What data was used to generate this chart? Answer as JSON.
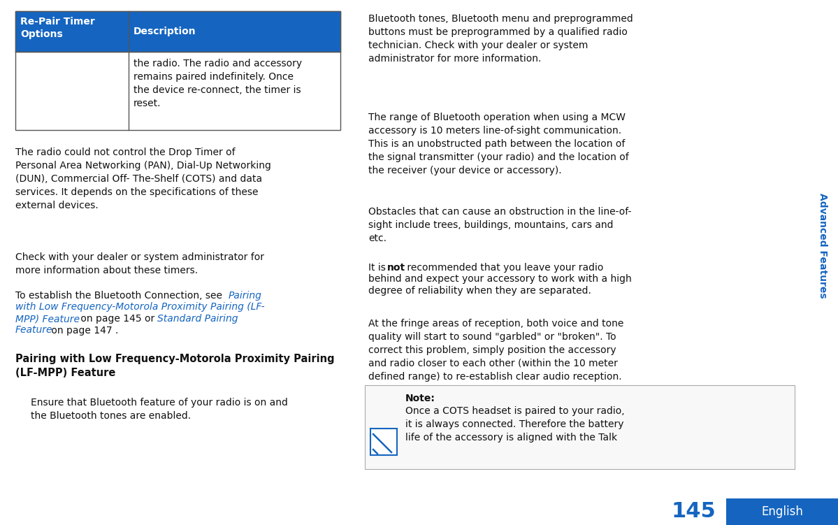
{
  "bg_color": "#ffffff",
  "blue_color": "#1565C0",
  "text_color": "#111111",
  "link_color": "#1565C0",
  "sidebar_text": "Advanced Features",
  "footer_text": "English",
  "page_number": "145",
  "table_header_col1": "Re-Pair Timer\nOptions",
  "table_header_col2": "Description",
  "table_body_col2": "the radio. The radio and accessory\nremains paired indefinitely. Once\nthe device re-connect, the timer is\nreset.",
  "para1_left": "The radio could not control the Drop Timer of\nPersonal Area Networking (PAN), Dial-Up Networking\n(DUN), Commercial Off- The-Shelf (COTS) and data\nservices. It depends on the specifications of these\nexternal devices.",
  "para2_left": "Check with your dealer or system administrator for\nmore information about these timers.",
  "para3_pre": "To establish the Bluetooth Connection, see ",
  "para3_link1": "Pairing\nwith Low Frequency-Motorola Proximity Pairing (LF-\nMPP) Feature",
  "para3_mid": " on page 145 or ",
  "para3_link2": "Standard Pairing\nFeature",
  "para3_post": " on page 147 .",
  "section_heading": "Pairing with Low Frequency-Motorola Proximity Pairing\n(LF-MPP) Feature",
  "para_ind1": "Ensure that Bluetooth feature of your radio is on and\nthe Bluetooth tones are enabled.",
  "rp1": "Bluetooth tones, Bluetooth menu and preprogrammed\nbuttons must be preprogrammed by a qualified radio\ntechnician. Check with your dealer or system\nadministrator for more information.",
  "rp2": "The range of Bluetooth operation when using a MCW\naccessory is 10 meters line-of-sight communication.\nThis is an unobstructed path between the location of\nthe signal transmitter (your radio) and the location of\nthe receiver (your device or accessory).",
  "rp3": "Obstacles that can cause an obstruction in the line-of-\nsight include trees, buildings, mountains, cars and\netc.",
  "rp4_pre": "It is ",
  "rp4_bold": "not",
  "rp4_post": " recommended that you leave your radio\nbehind and expect your accessory to work with a high\ndegree of reliability when they are separated.",
  "rp5": "At the fringe areas of reception, both voice and tone\nquality will start to sound \"garbled\" or \"broken\". To\ncorrect this problem, simply position the accessory\nand radio closer to each other (within the 10 meter\ndefined range) to re-establish clear audio reception.",
  "note_title": "Note:",
  "note_body": "Once a COTS headset is paired to your radio,\nit is always connected. Therefore the battery\nlife of the accessory is aligned with the Talk"
}
